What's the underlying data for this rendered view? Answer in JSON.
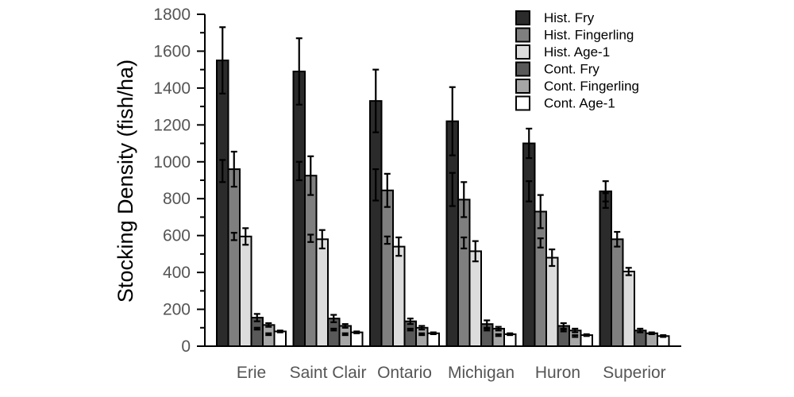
{
  "chart_data": {
    "type": "bar",
    "title": "",
    "xlabel": "",
    "ylabel": "Stocking Density (fish/ha)",
    "ylim": [
      0,
      1800
    ],
    "yticks": [
      0,
      200,
      400,
      600,
      800,
      1000,
      1200,
      1400,
      1600,
      1800
    ],
    "grid": false,
    "legend_position": "top-right",
    "categories": [
      "Erie",
      "Saint Clair",
      "Ontario",
      "Michigan",
      "Huron",
      "Superior"
    ],
    "series": [
      {
        "name": "Hist. Fry",
        "color": "#2b2b2b",
        "values": [
          1550,
          1490,
          1330,
          1220,
          1100,
          840
        ],
        "error": [
          180,
          180,
          170,
          185,
          80,
          55
        ]
      },
      {
        "name": "Hist. Fingerling",
        "color": "#7f7f7f",
        "values": [
          960,
          925,
          845,
          795,
          730,
          580
        ],
        "error": [
          95,
          105,
          90,
          95,
          90,
          40
        ]
      },
      {
        "name": "Hist. Age-1",
        "color": "#dcdcdc",
        "values": [
          595,
          580,
          540,
          515,
          480,
          405
        ],
        "error": [
          45,
          50,
          50,
          55,
          45,
          20
        ]
      },
      {
        "name": "Cont. Fry",
        "color": "#595959",
        "values": [
          155,
          150,
          135,
          120,
          110,
          85
        ],
        "error": [
          20,
          20,
          15,
          20,
          15,
          10
        ]
      },
      {
        "name": "Cont. Fingerling",
        "color": "#a6a6a6",
        "values": [
          115,
          110,
          100,
          95,
          85,
          70
        ],
        "error": [
          10,
          10,
          10,
          10,
          10,
          5
        ]
      },
      {
        "name": "Cont. Age-1",
        "color": "#ffffff",
        "values": [
          80,
          75,
          70,
          65,
          60,
          55
        ],
        "error": [
          5,
          5,
          5,
          5,
          5,
          5
        ]
      }
    ],
    "markers": [
      {
        "series": "Hist. Fry",
        "values": [
          950,
          950,
          875,
          850,
          840,
          790
        ],
        "error": [
          60,
          50,
          85,
          90,
          55,
          40
        ]
      },
      {
        "series": "Hist. Fingerling",
        "values": [
          595,
          585,
          575,
          560,
          560,
          0
        ],
        "error": [
          20,
          20,
          20,
          30,
          25,
          0
        ]
      },
      {
        "series": "Cont. Fry",
        "values": [
          95,
          90,
          90,
          90,
          85,
          0
        ],
        "error": [
          5,
          5,
          5,
          5,
          5,
          0
        ]
      },
      {
        "series": "Cont. Fingerling",
        "values": [
          65,
          65,
          65,
          60,
          55,
          0
        ],
        "error": [
          5,
          5,
          5,
          5,
          5,
          0
        ]
      }
    ]
  }
}
